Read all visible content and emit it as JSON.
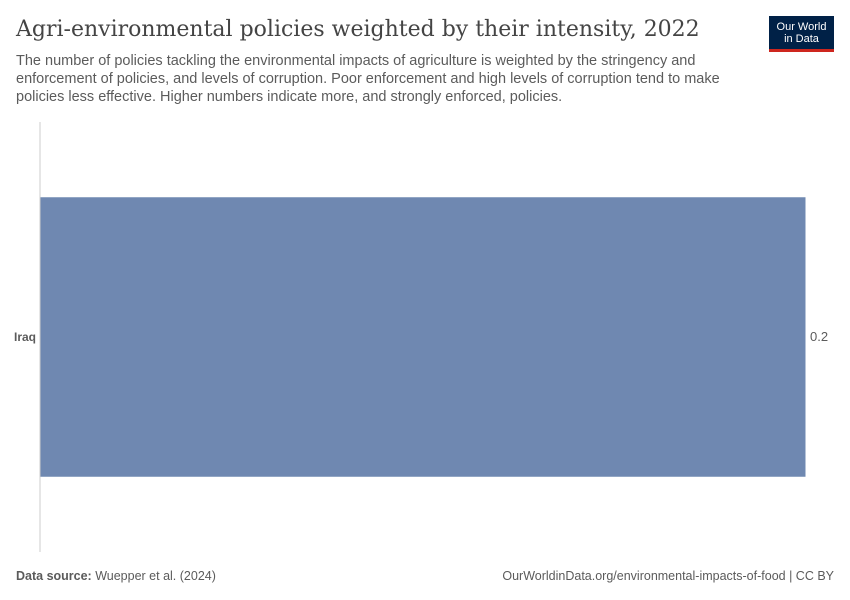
{
  "header": {
    "title": "Agri-environmental policies weighted by their intensity, 2022",
    "subtitle": "The number of policies tackling the environmental impacts of agriculture is weighted by the stringency and enforcement of policies, and levels of corruption. Poor enforcement and high levels of corruption tend to make policies less effective. Higher numbers indicate more, and strongly enforced, policies.",
    "logo_line1": "Our World",
    "logo_line2": "in Data"
  },
  "chart_data": {
    "type": "bar",
    "orientation": "horizontal",
    "categories": [
      "Iraq"
    ],
    "values": [
      0.2
    ],
    "value_labels": [
      "0.2"
    ],
    "bar_color": "#6f88b1",
    "axis_color": "#cccccc",
    "xlim": [
      0,
      0.2
    ]
  },
  "footer": {
    "source_label": "Data source:",
    "source_text": " Wuepper et al. (2024)",
    "credit": "OurWorldinData.org/environmental-impacts-of-food | CC BY"
  }
}
